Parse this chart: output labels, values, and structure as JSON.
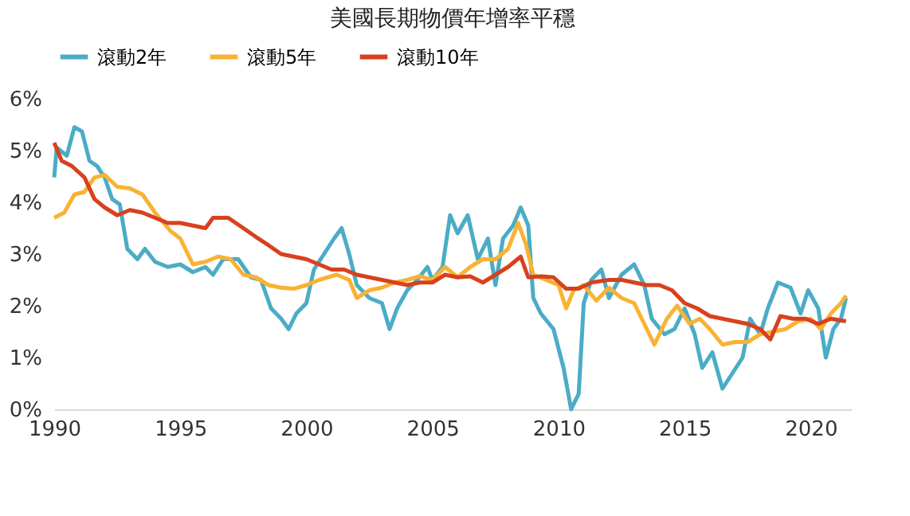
{
  "chart_data": {
    "type": "line",
    "title": "美國長期物價年增率平穩",
    "legend": "top",
    "grid": false,
    "line_style": "solid",
    "marker": "none",
    "xlim": [
      1990,
      2021.6
    ],
    "xticks": [
      1990,
      1995,
      2000,
      2005,
      2010,
      2015,
      2020
    ],
    "ylim": [
      0,
      6
    ],
    "yticks": [
      {
        "value": 0,
        "label": "0%"
      },
      {
        "value": 1,
        "label": "1%"
      },
      {
        "value": 2,
        "label": "2%"
      },
      {
        "value": 3,
        "label": "3%"
      },
      {
        "value": 4,
        "label": "4%"
      },
      {
        "value": 5,
        "label": "5%"
      },
      {
        "value": 6,
        "label": "6%"
      }
    ],
    "series": [
      {
        "name": "滾動2年",
        "color": "#4bacc6",
        "x": [
          1990.0,
          1990.1,
          1990.5,
          1990.8,
          1991.1,
          1991.4,
          1991.7,
          1992.0,
          1992.3,
          1992.6,
          1992.9,
          1993.3,
          1993.6,
          1994.0,
          1994.5,
          1995.0,
          1995.5,
          1996.0,
          1996.3,
          1996.7,
          1997.3,
          1997.8,
          1998.2,
          1998.6,
          1999.0,
          1999.3,
          1999.6,
          2000.0,
          2000.3,
          2000.7,
          2001.1,
          2001.4,
          2001.7,
          2002.0,
          2002.5,
          2003.0,
          2003.3,
          2003.6,
          2004.0,
          2004.4,
          2004.8,
          2005.0,
          2005.4,
          2005.7,
          2006.0,
          2006.4,
          2006.8,
          2007.2,
          2007.5,
          2007.8,
          2008.2,
          2008.5,
          2008.8,
          2009.0,
          2009.3,
          2009.8,
          2010.2,
          2010.5,
          2010.8,
          2011.0,
          2011.3,
          2011.7,
          2012.0,
          2012.5,
          2013.0,
          2013.4,
          2013.7,
          2014.2,
          2014.6,
          2015.0,
          2015.4,
          2015.7,
          2016.1,
          2016.5,
          2016.9,
          2017.3,
          2017.6,
          2018.0,
          2018.3,
          2018.7,
          2019.2,
          2019.6,
          2019.9,
          2020.3,
          2020.6,
          2020.9,
          2021.2,
          2021.4
        ],
        "values": [
          4.48,
          5.06,
          4.9,
          5.45,
          5.37,
          4.8,
          4.7,
          4.48,
          4.06,
          3.96,
          3.1,
          2.9,
          3.1,
          2.85,
          2.75,
          2.8,
          2.65,
          2.75,
          2.6,
          2.9,
          2.9,
          2.55,
          2.5,
          1.95,
          1.75,
          1.55,
          1.85,
          2.05,
          2.7,
          3.0,
          3.3,
          3.5,
          3.0,
          2.4,
          2.15,
          2.05,
          1.55,
          1.95,
          2.3,
          2.5,
          2.75,
          2.5,
          2.75,
          3.75,
          3.4,
          3.75,
          2.9,
          3.3,
          2.4,
          3.3,
          3.55,
          3.9,
          3.55,
          2.15,
          1.85,
          1.55,
          0.8,
          0.0,
          0.3,
          2.05,
          2.5,
          2.7,
          2.15,
          2.6,
          2.8,
          2.4,
          1.75,
          1.45,
          1.55,
          1.95,
          1.45,
          0.8,
          1.1,
          0.4,
          0.7,
          1.0,
          1.75,
          1.45,
          1.95,
          2.45,
          2.35,
          1.85,
          2.3,
          1.95,
          1.0,
          1.55,
          1.75,
          2.15
        ]
      },
      {
        "name": "滾動5年",
        "color": "#f9b233",
        "x": [
          1990.0,
          1990.4,
          1990.8,
          1991.2,
          1991.6,
          1992.0,
          1992.5,
          1993.0,
          1993.5,
          1994.0,
          1994.6,
          1995.0,
          1995.5,
          1996.0,
          1996.5,
          1997.0,
          1997.5,
          1998.0,
          1998.5,
          1999.0,
          1999.5,
          2000.0,
          2000.5,
          2001.2,
          2001.7,
          2002.0,
          2002.5,
          2003.0,
          2003.5,
          2004.0,
          2004.5,
          2005.0,
          2005.5,
          2006.0,
          2006.5,
          2007.0,
          2007.5,
          2008.0,
          2008.4,
          2008.7,
          2009.0,
          2009.5,
          2010.0,
          2010.3,
          2010.6,
          2011.0,
          2011.5,
          2012.0,
          2012.5,
          2013.0,
          2013.4,
          2013.8,
          2014.3,
          2014.7,
          2015.2,
          2015.6,
          2016.0,
          2016.5,
          2017.0,
          2017.5,
          2018.0,
          2018.5,
          2019.0,
          2019.5,
          2020.0,
          2020.4,
          2020.8,
          2021.2,
          2021.4
        ],
        "values": [
          3.7,
          3.8,
          4.15,
          4.2,
          4.48,
          4.53,
          4.3,
          4.27,
          4.15,
          3.8,
          3.45,
          3.3,
          2.8,
          2.85,
          2.95,
          2.9,
          2.6,
          2.55,
          2.4,
          2.35,
          2.33,
          2.4,
          2.5,
          2.6,
          2.5,
          2.15,
          2.3,
          2.35,
          2.45,
          2.5,
          2.57,
          2.5,
          2.75,
          2.55,
          2.75,
          2.9,
          2.9,
          3.1,
          3.6,
          3.2,
          2.6,
          2.5,
          2.4,
          1.95,
          2.3,
          2.4,
          2.1,
          2.35,
          2.15,
          2.05,
          1.65,
          1.25,
          1.75,
          2.0,
          1.65,
          1.75,
          1.55,
          1.25,
          1.3,
          1.3,
          1.45,
          1.5,
          1.55,
          1.7,
          1.75,
          1.55,
          1.85,
          2.05,
          2.2
        ]
      },
      {
        "name": "滾動10年",
        "color": "#d8411d",
        "x": [
          1990.0,
          1990.3,
          1990.7,
          1991.2,
          1991.6,
          1992.0,
          1992.5,
          1993.0,
          1993.5,
          1994.0,
          1994.5,
          1995.0,
          1995.5,
          1996.0,
          1996.3,
          1996.9,
          1997.5,
          1998.0,
          1998.5,
          1999.0,
          1999.5,
          2000.0,
          2000.5,
          2001.0,
          2001.5,
          2002.0,
          2002.5,
          2003.0,
          2003.5,
          2004.0,
          2004.5,
          2005.0,
          2005.5,
          2006.0,
          2006.5,
          2007.0,
          2007.5,
          2008.0,
          2008.5,
          2008.8,
          2009.3,
          2009.8,
          2010.3,
          2010.8,
          2011.3,
          2012.0,
          2012.5,
          2013.0,
          2013.5,
          2014.0,
          2014.5,
          2015.0,
          2015.5,
          2016.0,
          2016.5,
          2017.0,
          2017.5,
          2018.0,
          2018.4,
          2018.8,
          2019.3,
          2019.8,
          2020.3,
          2020.8,
          2021.4
        ],
        "values": [
          5.15,
          4.8,
          4.7,
          4.48,
          4.06,
          3.9,
          3.75,
          3.85,
          3.8,
          3.7,
          3.6,
          3.6,
          3.55,
          3.5,
          3.7,
          3.7,
          3.5,
          3.33,
          3.17,
          3.0,
          2.95,
          2.9,
          2.8,
          2.7,
          2.7,
          2.6,
          2.55,
          2.5,
          2.45,
          2.4,
          2.45,
          2.45,
          2.6,
          2.55,
          2.57,
          2.45,
          2.6,
          2.75,
          2.95,
          2.55,
          2.57,
          2.55,
          2.33,
          2.33,
          2.45,
          2.5,
          2.5,
          2.45,
          2.4,
          2.4,
          2.3,
          2.05,
          1.95,
          1.8,
          1.75,
          1.7,
          1.65,
          1.55,
          1.35,
          1.8,
          1.75,
          1.75,
          1.65,
          1.75,
          1.7
        ]
      }
    ]
  }
}
